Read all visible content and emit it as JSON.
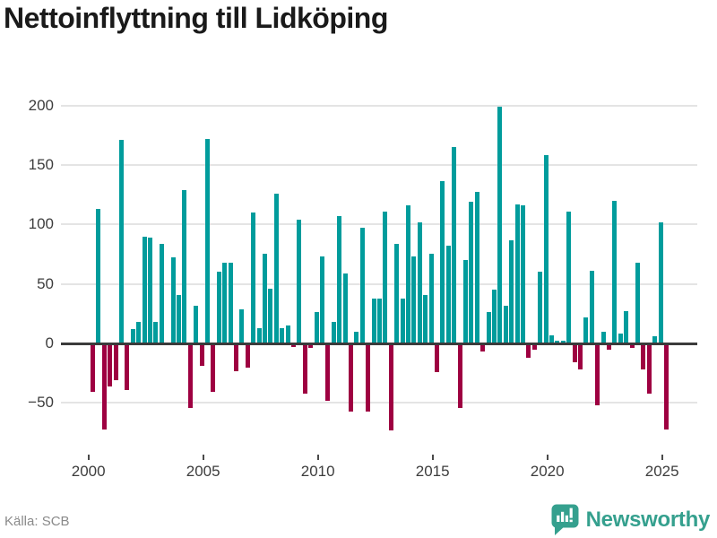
{
  "header": {
    "title": "Nettoinflyttning till Lidköping"
  },
  "footer": {
    "source": "Källa: SCB",
    "brand": "Newsworthy",
    "brand_color": "#35a08e",
    "brand_icon": "speech-bubble-bar-chart"
  },
  "chart_data": {
    "type": "bar",
    "title": "Nettoinflyttning till Lidköping",
    "xlabel": "",
    "ylabel": "",
    "legend": "none",
    "grid": "horizontal",
    "ylim": [
      -92,
      213
    ],
    "colors": {
      "positive": "#009c9c",
      "negative": "#9e0041"
    },
    "y_ticks": [
      {
        "v": 200,
        "label": "200"
      },
      {
        "v": 150,
        "label": "150"
      },
      {
        "v": 100,
        "label": "100"
      },
      {
        "v": 50,
        "label": "50"
      },
      {
        "v": 0,
        "label": "0"
      },
      {
        "v": -50,
        "label": "−50"
      }
    ],
    "x_ticks": [
      {
        "v": 2000,
        "label": "2000"
      },
      {
        "v": 2005,
        "label": "2005"
      },
      {
        "v": 2010,
        "label": "2010"
      },
      {
        "v": 2015,
        "label": "2015"
      },
      {
        "v": 2020,
        "label": "2020"
      },
      {
        "v": 2025,
        "label": "2025"
      }
    ],
    "categories": [
      "2000 K1",
      "2000 K2",
      "2000 K3",
      "2000 K4",
      "2001 K1",
      "2001 K2",
      "2001 K3",
      "2001 K4",
      "2002 K1",
      "2002 K2",
      "2002 K3",
      "2002 K4",
      "2003 K1",
      "2003 K2",
      "2003 K3",
      "2003 K4",
      "2004 K1",
      "2004 K2",
      "2004 K3",
      "2004 K4",
      "2005 K1",
      "2005 K2",
      "2005 K3",
      "2005 K4",
      "2006 K1",
      "2006 K2",
      "2006 K3",
      "2006 K4",
      "2007 K1",
      "2007 K2",
      "2007 K3",
      "2007 K4",
      "2008 K1",
      "2008 K2",
      "2008 K3",
      "2008 K4",
      "2009 K1",
      "2009 K2",
      "2009 K3",
      "2009 K4",
      "2010 K1",
      "2010 K2",
      "2010 K3",
      "2010 K4",
      "2011 K1",
      "2011 K2",
      "2011 K3",
      "2011 K4",
      "2012 K1",
      "2012 K2",
      "2012 K3",
      "2012 K4",
      "2013 K1",
      "2013 K2",
      "2013 K3",
      "2013 K4",
      "2014 K1",
      "2014 K2",
      "2014 K3",
      "2014 K4",
      "2015 K1",
      "2015 K2",
      "2015 K3",
      "2015 K4",
      "2016 K1",
      "2016 K2",
      "2016 K3",
      "2016 K4",
      "2017 K1",
      "2017 K2",
      "2017 K3",
      "2017 K4",
      "2018 K1",
      "2018 K2",
      "2018 K3",
      "2018 K4",
      "2019 K1",
      "2019 K2",
      "2019 K3",
      "2019 K4",
      "2020 K1",
      "2020 K2",
      "2020 K3",
      "2020 K4",
      "2021 K1",
      "2021 K2",
      "2021 K3",
      "2021 K4",
      "2022 K1",
      "2022 K2",
      "2022 K3",
      "2022 K4",
      "2023 K1",
      "2023 K2",
      "2023 K3",
      "2023 K4",
      "2024 K1",
      "2024 K2",
      "2024 K3",
      "2024 K4",
      "2025 K1"
    ],
    "values": [
      -41,
      113,
      -72,
      -36,
      -31,
      171,
      -39,
      12,
      18,
      90,
      89,
      18,
      84,
      0,
      72,
      41,
      129,
      -54,
      32,
      -19,
      172,
      -41,
      60,
      68,
      68,
      -23,
      29,
      -20,
      110,
      13,
      75,
      46,
      126,
      13,
      15,
      -3,
      104,
      -42,
      -4,
      26,
      73,
      -48,
      18,
      107,
      59,
      -57,
      10,
      97,
      -57,
      38,
      38,
      111,
      -73,
      84,
      38,
      116,
      73,
      102,
      41,
      75,
      -24,
      136,
      82,
      165,
      -54,
      70,
      119,
      127,
      -7,
      26,
      45,
      199,
      32,
      87,
      117,
      116,
      -12,
      -5,
      60,
      158,
      7,
      2,
      2,
      111,
      -16,
      -22,
      22,
      61,
      -52,
      10,
      -5,
      120,
      8,
      27,
      -4,
      68,
      -22,
      -42,
      6,
      102,
      -72
    ]
  }
}
